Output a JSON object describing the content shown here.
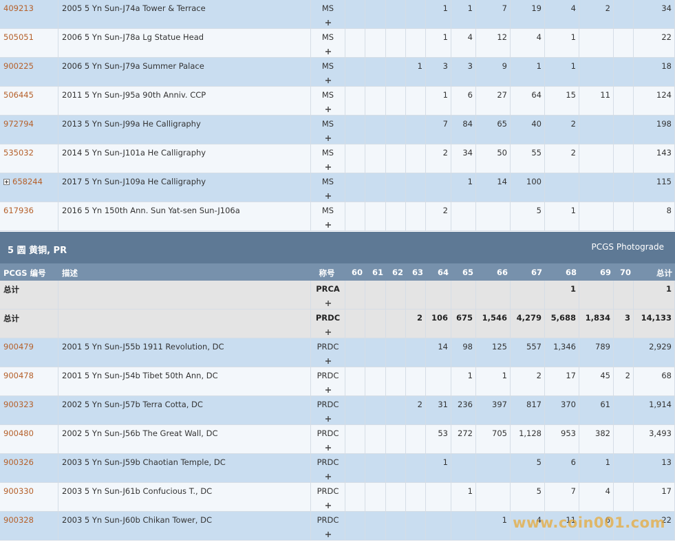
{
  "top_rows": [
    {
      "id": "409213",
      "desc": "2005 5 Yn Sun-J74a Tower & Terrace",
      "designation": "MS",
      "grades": [
        null,
        null,
        null,
        null,
        "1",
        "1",
        "7",
        "19",
        "4",
        "2",
        null
      ],
      "total": "34"
    },
    {
      "id": "505051",
      "desc": "2006 5 Yn Sun-J78a Lg Statue Head",
      "designation": "MS",
      "grades": [
        null,
        null,
        null,
        null,
        "1",
        "4",
        "12",
        "4",
        "1",
        null,
        null
      ],
      "total": "22"
    },
    {
      "id": "900225",
      "desc": "2006 5 Yn Sun-J79a Summer Palace",
      "designation": "MS",
      "grades": [
        null,
        null,
        null,
        "1",
        "3",
        "3",
        "9",
        "1",
        "1",
        null,
        null
      ],
      "total": "18"
    },
    {
      "id": "506445",
      "desc": "2011 5 Yn Sun-J95a 90th Anniv. CCP",
      "designation": "MS",
      "grades": [
        null,
        null,
        null,
        null,
        "1",
        "6",
        "27",
        "64",
        "15",
        "11",
        null
      ],
      "total": "124"
    },
    {
      "id": "972794",
      "desc": "2013 5 Yn Sun-J99a He Calligraphy",
      "designation": "MS",
      "grades": [
        null,
        null,
        null,
        null,
        "7",
        "84",
        "65",
        "40",
        "2",
        null,
        null
      ],
      "total": "198"
    },
    {
      "id": "535032",
      "desc": "2014 5 Yn Sun-J101a He Calligraphy",
      "designation": "MS",
      "grades": [
        null,
        null,
        null,
        null,
        "2",
        "34",
        "50",
        "55",
        "2",
        null,
        null
      ],
      "total": "143"
    },
    {
      "id": "658244",
      "desc": "2017 5 Yn Sun-J109a He Calligraphy",
      "designation": "MS",
      "expand": true,
      "grades": [
        null,
        null,
        null,
        null,
        null,
        "1",
        "14",
        "100",
        null,
        null,
        null
      ],
      "total": "115"
    },
    {
      "id": "617936",
      "desc": "2016 5 Yn 150th Ann. Sun Yat-sen Sun-J106a",
      "designation": "MS",
      "grades": [
        null,
        null,
        null,
        null,
        "2",
        null,
        null,
        "5",
        "1",
        null,
        null
      ],
      "total": "8"
    }
  ],
  "section": {
    "title": "5 圆 黄铜, PR",
    "link": "PCGS Photograde",
    "columns": [
      "PCGS 编号",
      "描述",
      "称号",
      "60",
      "61",
      "62",
      "63",
      "64",
      "65",
      "66",
      "67",
      "68",
      "69",
      "70",
      "总计"
    ],
    "summary_rows": [
      {
        "id": "总计",
        "designation": "PRCA",
        "grades": [
          null,
          null,
          null,
          null,
          null,
          null,
          null,
          null,
          "1",
          null,
          null
        ],
        "total": "1"
      },
      {
        "id": "总计",
        "designation": "PRDC",
        "grades": [
          null,
          null,
          null,
          "2",
          "106",
          "675",
          "1,546",
          "4,279",
          "5,688",
          "1,834",
          "3"
        ],
        "total": "14,133"
      }
    ],
    "rows": [
      {
        "id": "900479",
        "desc": "2001 5 Yn Sun-J55b 1911 Revolution, DC",
        "designation": "PRDC",
        "grades": [
          null,
          null,
          null,
          null,
          "14",
          "98",
          "125",
          "557",
          "1,346",
          "789",
          null
        ],
        "total": "2,929"
      },
      {
        "id": "900478",
        "desc": "2001 5 Yn Sun-J54b Tibet 50th Ann, DC",
        "designation": "PRDC",
        "grades": [
          null,
          null,
          null,
          null,
          null,
          "1",
          "1",
          "2",
          "17",
          "45",
          "2"
        ],
        "total": "68"
      },
      {
        "id": "900323",
        "desc": "2002 5 Yn Sun-J57b Terra Cotta, DC",
        "designation": "PRDC",
        "grades": [
          null,
          null,
          null,
          "2",
          "31",
          "236",
          "397",
          "817",
          "370",
          "61",
          null
        ],
        "total": "1,914"
      },
      {
        "id": "900480",
        "desc": "2002 5 Yn Sun-J56b The Great Wall, DC",
        "designation": "PRDC",
        "grades": [
          null,
          null,
          null,
          null,
          "53",
          "272",
          "705",
          "1,128",
          "953",
          "382",
          null
        ],
        "total": "3,493"
      },
      {
        "id": "900326",
        "desc": "2003 5 Yn Sun-J59b Chaotian Temple, DC",
        "designation": "PRDC",
        "grades": [
          null,
          null,
          null,
          null,
          "1",
          null,
          null,
          "5",
          "6",
          "1",
          null
        ],
        "total": "13"
      },
      {
        "id": "900330",
        "desc": "2003 5 Yn Sun-J61b Confucious T., DC",
        "designation": "PRDC",
        "grades": [
          null,
          null,
          null,
          null,
          null,
          "1",
          null,
          "5",
          "7",
          "4",
          null
        ],
        "total": "17"
      },
      {
        "id": "900328",
        "desc": "2003 5 Yn Sun-J60b Chikan Tower, DC",
        "designation": "PRDC",
        "grades": [
          null,
          null,
          null,
          null,
          null,
          null,
          "1",
          "4",
          "11",
          "6",
          null
        ],
        "total": "22"
      }
    ]
  },
  "watermark": "www.coin001.com"
}
